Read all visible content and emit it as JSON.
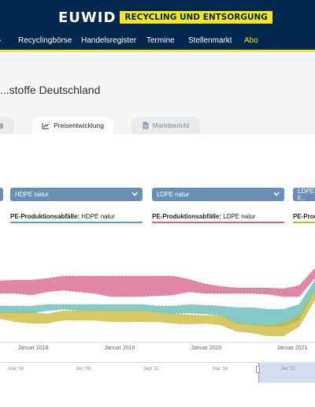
{
  "brand": {
    "name": "EUWID",
    "tagline": "RECYCLING UND ENTSORGUNG",
    "accent": "#f5e61b",
    "navy": "#00274d"
  },
  "nav": {
    "items": [
      "Recyclingbörse",
      "Handelsregister",
      "Termine",
      "Stellenmarkt",
      "Abo"
    ]
  },
  "page": {
    "title": "...stoffe Deutschland"
  },
  "tabs": {
    "preis": "Preisentwicklung",
    "markt": "Marktbericht"
  },
  "filters": {
    "select1": "HDPE natur",
    "select2": "LDPE natur",
    "select3": "LDPE-F...",
    "label1_bold": "PE-Produktionsabfälle:",
    "label1_rest": " HDPE natur",
    "label2_bold": "PE-Produktionsabfälle:",
    "label2_rest": " LDPE natur",
    "label3_bold": "PE-Produ"
  },
  "chart_data": {
    "type": "area",
    "x_ticks": [
      "Januar 2018",
      "Januar 2019",
      "Januar 2020",
      "Januar 2021"
    ],
    "navigator_ticks": [
      "Mai '06",
      "Jan '09",
      "Sep '11",
      "Mai '14",
      "Jan '17"
    ],
    "series": [
      {
        "color": "#d65f8a"
      },
      {
        "color": "#5bb8b4"
      },
      {
        "color": "#c9b630"
      }
    ]
  }
}
